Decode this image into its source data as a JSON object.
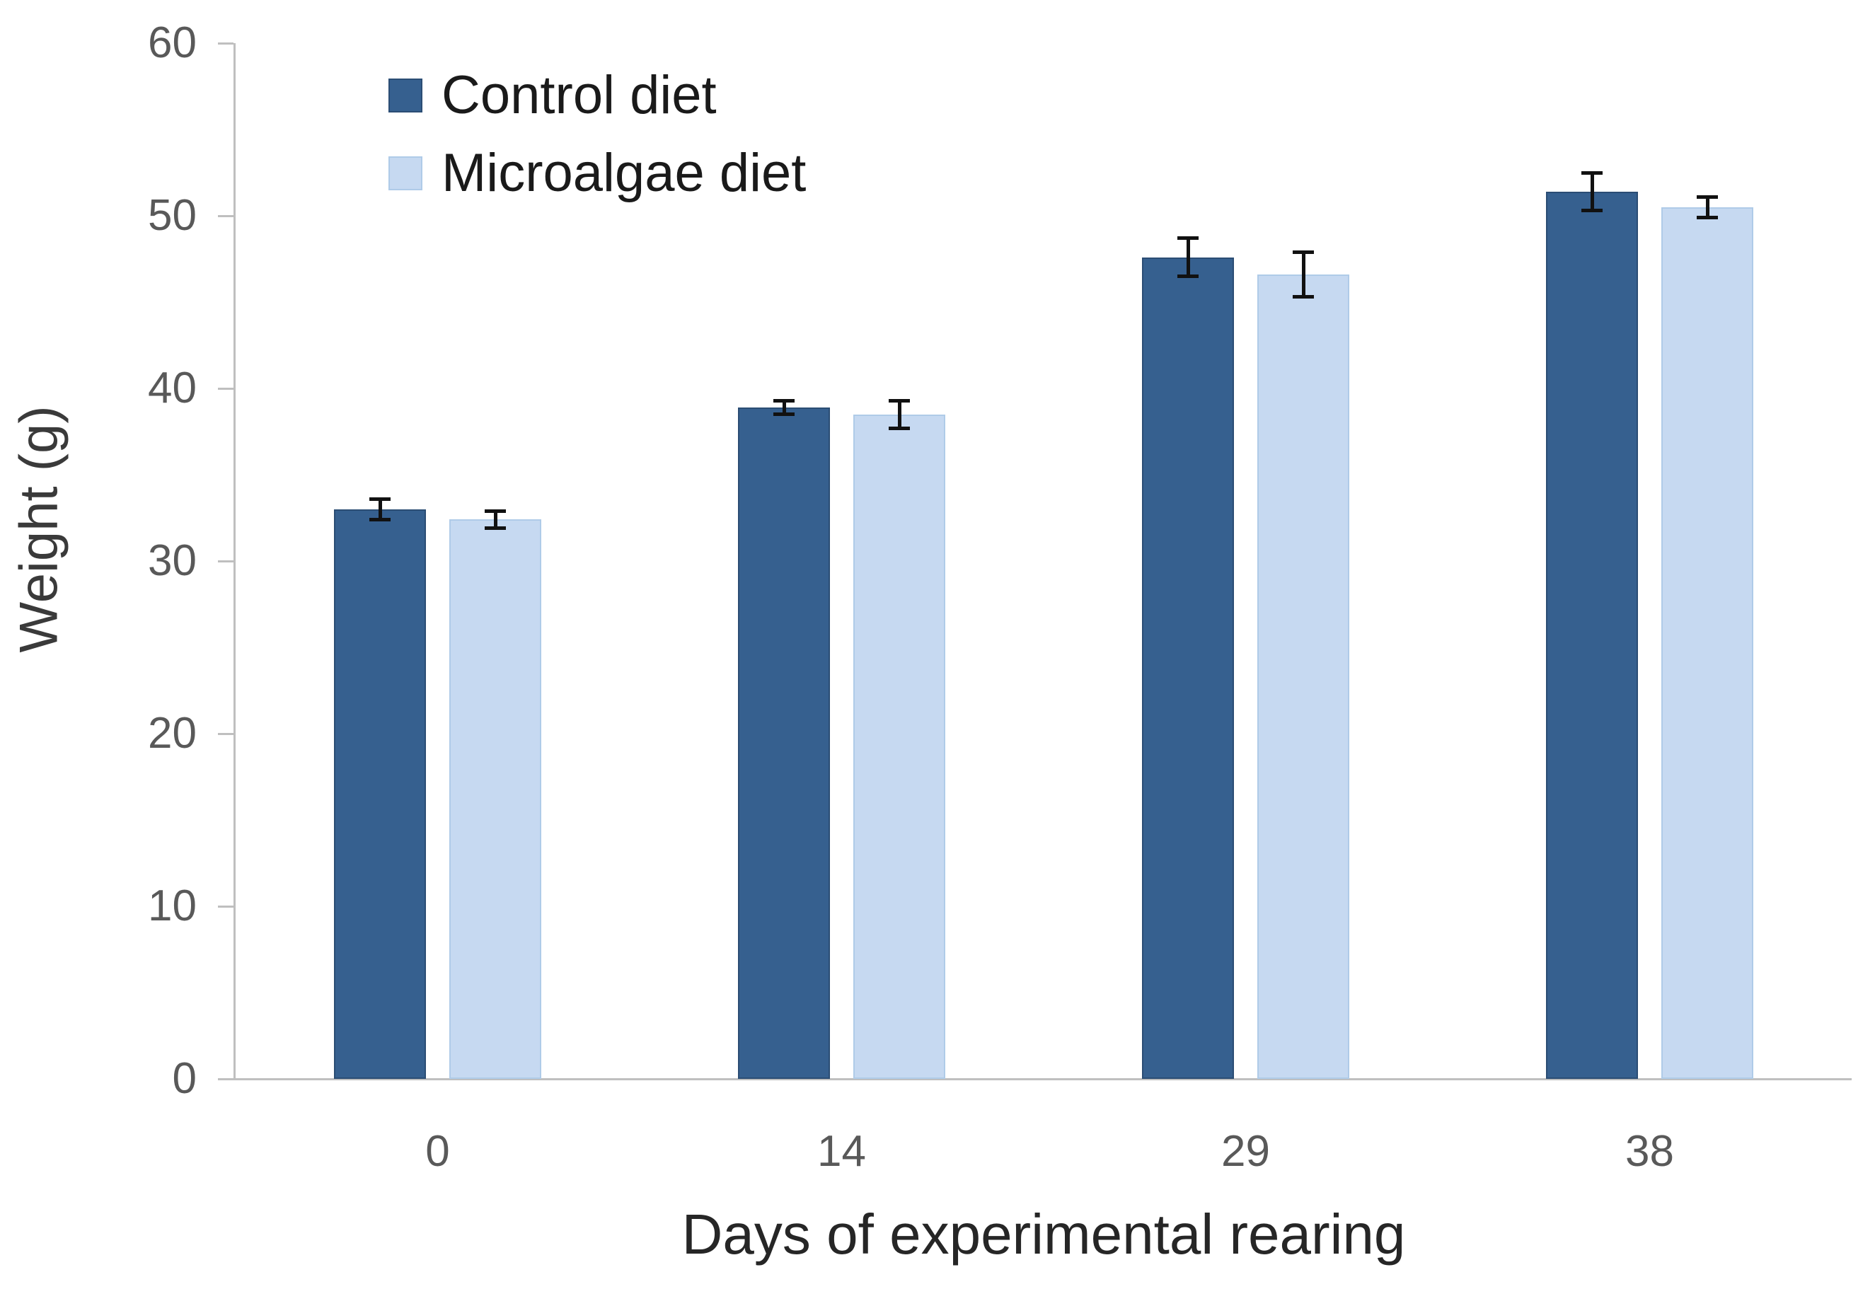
{
  "chart_data": {
    "type": "bar",
    "title": "",
    "categories": [
      "0",
      "14",
      "29",
      "38"
    ],
    "series": [
      {
        "name": "Control diet",
        "color": "#36608F",
        "border_color": "#2B4D74",
        "values": [
          33.0,
          38.9,
          47.6,
          51.4
        ],
        "errors": [
          0.6,
          0.4,
          1.1,
          1.1
        ]
      },
      {
        "name": "Microalgae diet",
        "color": "#C6D9F1",
        "border_color": "#AFCBE8",
        "values": [
          32.4,
          38.5,
          46.6,
          50.5
        ],
        "errors": [
          0.5,
          0.8,
          1.3,
          0.6
        ]
      }
    ],
    "xlabel": "Days of experimental rearing",
    "ylabel": "Weight (g)",
    "ylim": [
      0,
      60
    ],
    "ytick_step": 10,
    "ytick_labels": [
      "0",
      "10",
      "20",
      "30",
      "40",
      "50",
      "60"
    ],
    "grid": false,
    "legend_position": "top-left-inside",
    "error_bars": true,
    "colors": {
      "axis": "#BFBFBF",
      "tick_label": "#595959",
      "x_axis_title": "#262626",
      "y_axis_title": "#3A3A3A",
      "legend_text": "#1A1A1A",
      "error_bar": "#111111",
      "background": "#FFFFFF"
    }
  }
}
